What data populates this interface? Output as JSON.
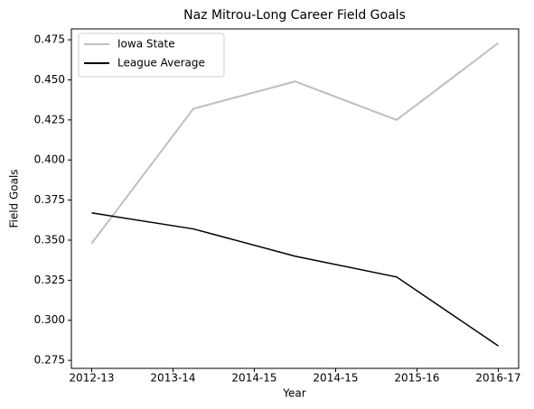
{
  "chart_data": {
    "type": "line",
    "title": "Naz Mitrou-Long Career Field Goals",
    "xlabel": "Year",
    "ylabel": "Field Goals",
    "x": [
      0,
      1.25,
      2.5,
      3.75,
      5
    ],
    "xlim": [
      -0.25,
      5.25
    ],
    "xticks": [
      {
        "value": 0,
        "label": "2012-13"
      },
      {
        "value": 1,
        "label": "2013-14"
      },
      {
        "value": 2,
        "label": "2014-15"
      },
      {
        "value": 3,
        "label": "2014-15"
      },
      {
        "value": 4,
        "label": "2015-16"
      },
      {
        "value": 5,
        "label": "2016-17"
      }
    ],
    "ylim": [
      0.27,
      0.4818
    ],
    "yticks": [
      {
        "value": 0.275,
        "label": "0.275"
      },
      {
        "value": 0.3,
        "label": "0.300"
      },
      {
        "value": 0.325,
        "label": "0.325"
      },
      {
        "value": 0.35,
        "label": "0.350"
      },
      {
        "value": 0.375,
        "label": "0.375"
      },
      {
        "value": 0.4,
        "label": "0.400"
      },
      {
        "value": 0.425,
        "label": "0.425"
      },
      {
        "value": 0.45,
        "label": "0.450"
      },
      {
        "value": 0.475,
        "label": "0.475"
      }
    ],
    "legend": "upper left",
    "series": [
      {
        "name": "Iowa State",
        "color": "#bfbfbf",
        "width": 2,
        "values": [
          0.348,
          0.432,
          0.449,
          0.425,
          0.473
        ]
      },
      {
        "name": "League Average",
        "color": "#000000",
        "width": 1.5,
        "values": [
          0.367,
          0.357,
          0.34,
          0.327,
          0.284
        ]
      }
    ]
  }
}
